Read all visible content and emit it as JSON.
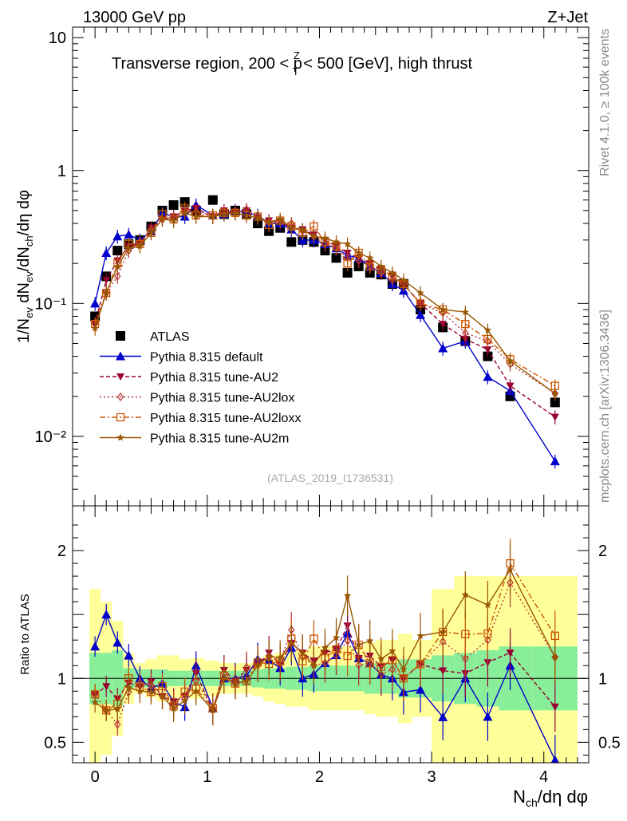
{
  "header": {
    "left": "13000 GeV pp",
    "right": "Z+Jet"
  },
  "side": {
    "rivet": "Rivet 4.1.0, ≥ 100k events",
    "mcplots": "mcplots.cern.ch [arXiv:1306.3436]"
  },
  "chart_data": {
    "type": "scatter",
    "title": "Transverse region, 200 < pT(Z) < 500 [GeV], high thrust",
    "title_parts": {
      "pre": "Transverse region, 200 < p",
      "sup": "Z",
      "sub": "T",
      "post": " < 500 [GeV], high thrust"
    },
    "watermark": "(ATLAS_2019_I1736531)",
    "ylabel": "1/Nev dNev/dNch/dη dφ",
    "ylabel_parts": {
      "a": "1/N",
      "a_sub": "ev",
      "b": " dN",
      "b_sub": "ev",
      "c": "/dN",
      "c_sub": "ch",
      "d": "/dη dφ"
    },
    "xlabel": "Nch/dη dφ",
    "xlabel_parts": {
      "a": "N",
      "a_sub": "ch",
      "b": "/dη dφ"
    },
    "ratio_ylabel": "Ratio to ATLAS",
    "xlim": [
      -0.2,
      4.4
    ],
    "ylim": [
      0.003,
      12
    ],
    "ratio_ylim": [
      0.34,
      2.35
    ],
    "x_ticks": [
      "0",
      "1",
      "2",
      "3",
      "4"
    ],
    "y_ticks": [
      "10",
      "1",
      "10⁻¹",
      "10⁻²"
    ],
    "ratio_ticks": [
      "2",
      "1.5",
      "1",
      "0.5"
    ],
    "x": [
      0.0,
      0.1,
      0.2,
      0.3,
      0.4,
      0.5,
      0.6,
      0.7,
      0.8,
      0.9,
      1.05,
      1.15,
      1.25,
      1.35,
      1.45,
      1.55,
      1.65,
      1.75,
      1.85,
      1.95,
      2.05,
      2.15,
      2.25,
      2.35,
      2.45,
      2.55,
      2.65,
      2.75,
      2.9,
      3.1,
      3.3,
      3.5,
      3.7,
      4.1
    ],
    "series": [
      {
        "name": "ATLAS",
        "color": "#000000",
        "marker": "square",
        "values": [
          0.08,
          0.16,
          0.25,
          0.28,
          0.3,
          0.38,
          0.5,
          0.55,
          0.58,
          0.5,
          0.6,
          0.47,
          0.5,
          0.47,
          0.4,
          0.35,
          0.37,
          0.29,
          0.3,
          0.29,
          0.25,
          0.22,
          0.17,
          0.19,
          0.17,
          0.165,
          0.14,
          0.14,
          0.09,
          0.066,
          0.052,
          0.04,
          0.02,
          0.018
        ]
      },
      {
        "name": "Pythia 8.315 default",
        "color": "#0000cc",
        "marker": "triangle-up",
        "values": [
          0.1,
          0.24,
          0.32,
          0.33,
          0.3,
          0.35,
          0.48,
          0.45,
          0.45,
          0.55,
          0.46,
          0.47,
          0.5,
          0.48,
          0.46,
          0.4,
          0.4,
          0.36,
          0.3,
          0.3,
          0.28,
          0.26,
          0.23,
          0.22,
          0.19,
          0.17,
          0.14,
          0.125,
          0.082,
          0.046,
          0.052,
          0.028,
          0.022,
          0.0065
        ]
      },
      {
        "name": "Pythia 8.315 tune-AU2",
        "color": "#990033",
        "marker": "triangle-down",
        "values": [
          0.07,
          0.15,
          0.21,
          0.27,
          0.28,
          0.37,
          0.43,
          0.45,
          0.5,
          0.52,
          0.45,
          0.5,
          0.49,
          0.5,
          0.44,
          0.42,
          0.41,
          0.37,
          0.36,
          0.33,
          0.3,
          0.27,
          0.24,
          0.22,
          0.2,
          0.18,
          0.16,
          0.14,
          0.1,
          0.07,
          0.054,
          0.045,
          0.024,
          0.014
        ]
      },
      {
        "name": "Pythia 8.315 tune-AU2lox",
        "color": "#bb3333",
        "marker": "diamond",
        "values": [
          0.07,
          0.12,
          0.16,
          0.25,
          0.29,
          0.36,
          0.43,
          0.44,
          0.49,
          0.49,
          0.46,
          0.49,
          0.48,
          0.51,
          0.45,
          0.41,
          0.42,
          0.4,
          0.35,
          0.32,
          0.28,
          0.26,
          0.22,
          0.21,
          0.19,
          0.17,
          0.15,
          0.14,
          0.1,
          0.085,
          0.06,
          0.052,
          0.035,
          0.021
        ]
      },
      {
        "name": "Pythia 8.315 tune-AU2loxx",
        "color": "#cc5500",
        "marker": "square-open",
        "values": [
          0.07,
          0.12,
          0.2,
          0.28,
          0.28,
          0.34,
          0.47,
          0.43,
          0.52,
          0.46,
          0.46,
          0.48,
          0.48,
          0.46,
          0.45,
          0.39,
          0.42,
          0.38,
          0.34,
          0.38,
          0.29,
          0.27,
          0.2,
          0.24,
          0.19,
          0.18,
          0.16,
          0.14,
          0.1,
          0.09,
          0.07,
          0.054,
          0.038,
          0.024
        ]
      },
      {
        "name": "Pythia 8.315 tune-AU2m",
        "color": "#995500",
        "marker": "star",
        "values": [
          0.065,
          0.12,
          0.19,
          0.26,
          0.27,
          0.34,
          0.43,
          0.42,
          0.48,
          0.45,
          0.45,
          0.47,
          0.48,
          0.46,
          0.44,
          0.41,
          0.43,
          0.37,
          0.36,
          0.32,
          0.31,
          0.29,
          0.28,
          0.24,
          0.22,
          0.19,
          0.17,
          0.15,
          0.12,
          0.09,
          0.086,
          0.063,
          0.037,
          0.021
        ]
      }
    ],
    "band_inner_halfwidth": [
      0.2,
      0.2,
      0.22,
      0.08,
      0.07,
      0.07,
      0.07,
      0.06,
      0.06,
      0.06,
      0.06,
      0.06,
      0.06,
      0.06,
      0.07,
      0.08,
      0.08,
      0.09,
      0.09,
      0.1,
      0.1,
      0.1,
      0.1,
      0.1,
      0.12,
      0.12,
      0.12,
      0.15,
      0.15,
      0.18,
      0.2,
      0.22,
      0.25,
      0.25
    ],
    "band_outer_halfwidth": [
      0.7,
      0.6,
      0.45,
      0.2,
      0.12,
      0.15,
      0.18,
      0.18,
      0.15,
      0.16,
      0.14,
      0.12,
      0.12,
      0.12,
      0.14,
      0.18,
      0.2,
      0.22,
      0.22,
      0.25,
      0.25,
      0.25,
      0.25,
      0.25,
      0.28,
      0.3,
      0.3,
      0.35,
      0.3,
      0.7,
      0.8,
      0.8,
      0.8,
      0.8
    ]
  }
}
